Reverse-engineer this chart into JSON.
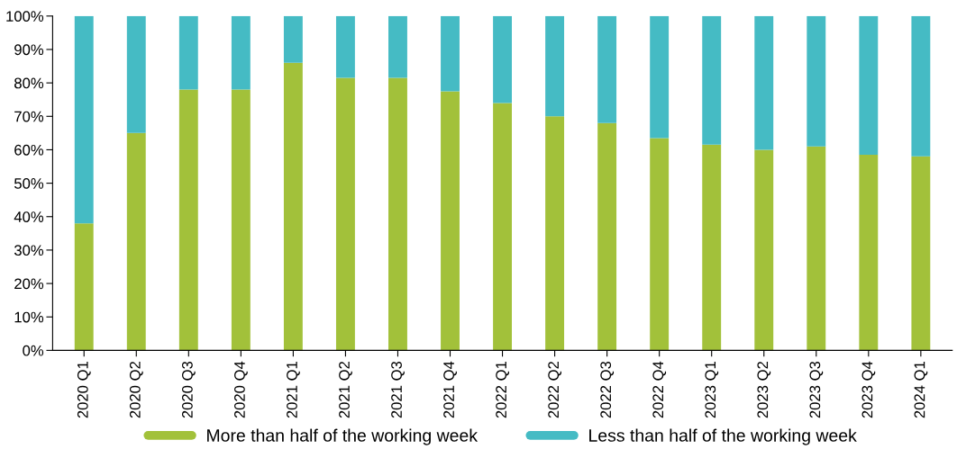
{
  "chart_data": {
    "type": "bar",
    "stacked": true,
    "categories": [
      "2020 Q1",
      "2020 Q2",
      "2020 Q3",
      "2020 Q4",
      "2021 Q1",
      "2021 Q2",
      "2021 Q3",
      "2021 Q4",
      "2022 Q1",
      "2022 Q2",
      "2022 Q3",
      "2022 Q4",
      "2023 Q1",
      "2023 Q2",
      "2023 Q3",
      "2023 Q4",
      "2024 Q1"
    ],
    "series": [
      {
        "name": "More than half of the working week",
        "color": "#a2c13a",
        "values": [
          38,
          65,
          78,
          78,
          86,
          81.5,
          81.5,
          77.5,
          74,
          70,
          68,
          63.5,
          61.5,
          60,
          61,
          58.5,
          58
        ]
      },
      {
        "name": "Less than half of the working week",
        "color": "#45bbc4",
        "values": [
          62,
          35,
          22,
          22,
          14,
          18.5,
          18.5,
          22.5,
          26,
          30,
          32,
          36.5,
          38.5,
          40,
          39,
          41.5,
          42
        ]
      }
    ],
    "ylim": [
      0,
      100
    ],
    "yticks": [
      {
        "value": 0,
        "label": "0%"
      },
      {
        "value": 10,
        "label": "10%"
      },
      {
        "value": 20,
        "label": "20%"
      },
      {
        "value": 30,
        "label": "30%"
      },
      {
        "value": 40,
        "label": "40%"
      },
      {
        "value": 50,
        "label": "50%"
      },
      {
        "value": 60,
        "label": "60%"
      },
      {
        "value": 70,
        "label": "70%"
      },
      {
        "value": 80,
        "label": "80%"
      },
      {
        "value": 90,
        "label": "90%"
      },
      {
        "value": 100,
        "label": "100%"
      }
    ],
    "grid": false,
    "legend": "bottom"
  }
}
